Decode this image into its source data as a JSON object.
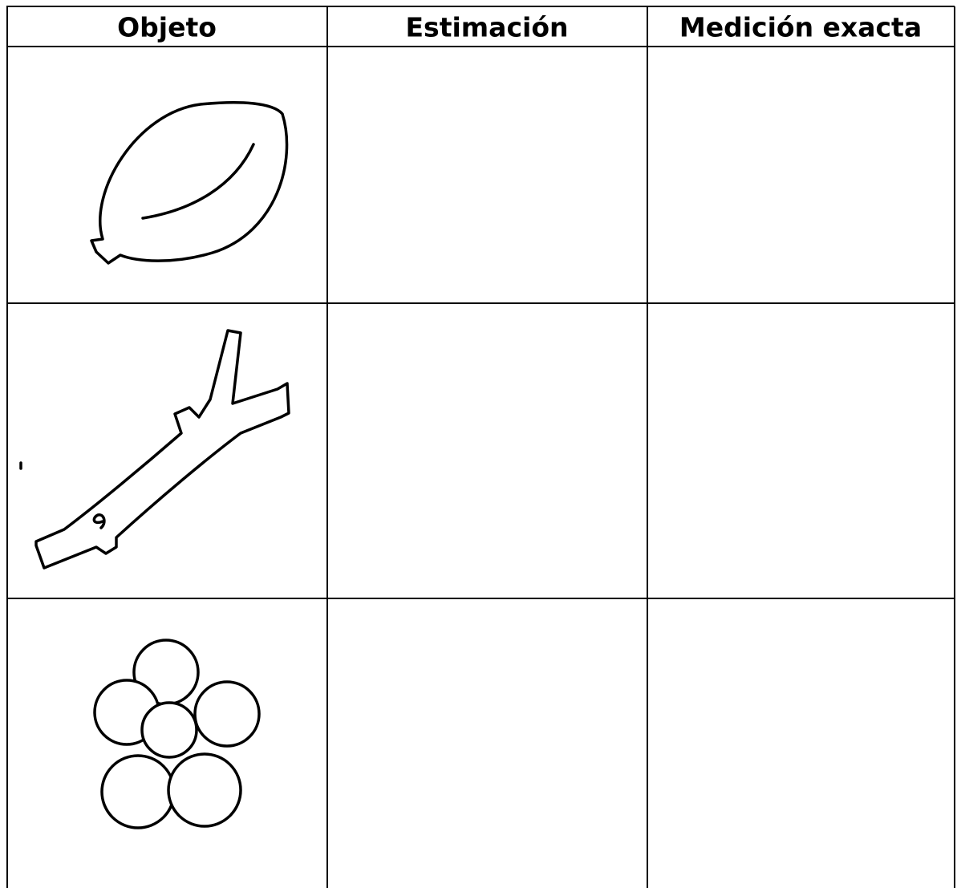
{
  "table": {
    "header": [
      "Objeto",
      "Estimación",
      "Medición exacta"
    ]
  }
}
